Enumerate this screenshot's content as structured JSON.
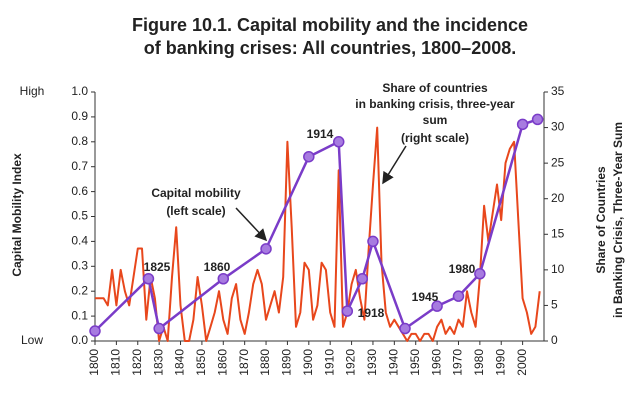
{
  "chart_data": {
    "type": "line",
    "title": [
      "Figure 10.1. Capital mobility and the incidence",
      "of banking crises: All countries, 1800–2008."
    ],
    "y_label": "Capital Mobility Index",
    "y2_label": [
      "Share of Countries",
      "in Banking Crisis, Three-Year Sum"
    ],
    "y_end_labels": [
      "Low",
      "High"
    ],
    "xlim": [
      1800,
      2010
    ],
    "xticks": [
      1800,
      1810,
      1820,
      1830,
      1840,
      1850,
      1860,
      1870,
      1880,
      1890,
      1900,
      1910,
      1920,
      1930,
      1940,
      1950,
      1960,
      1970,
      1980,
      1990,
      2000
    ],
    "ylim": [
      0,
      1
    ],
    "yticks": [
      {
        "value": 0,
        "label": "0.0"
      },
      0.1,
      0.2,
      0.3,
      0.4,
      0.5,
      0.6,
      0.7,
      0.8,
      0.9,
      {
        "value": 1,
        "label": "1.0"
      }
    ],
    "y2lim": [
      0,
      35
    ],
    "y2ticks": [
      0,
      5,
      10,
      15,
      20,
      25,
      30,
      35
    ],
    "series": [
      {
        "color": "#7a3cc8",
        "axis": "y",
        "markers": true,
        "x": [
          1800,
          1825,
          1830,
          1860,
          1880,
          1900,
          1914,
          1918,
          1925,
          1930,
          1945,
          1960,
          1970,
          1980,
          2000,
          2007
        ],
        "values": [
          0.04,
          0.25,
          0.05,
          0.25,
          0.37,
          0.74,
          0.8,
          0.12,
          0.25,
          0.4,
          0.05,
          0.14,
          0.18,
          0.27,
          0.87,
          0.89
        ]
      },
      {
        "color": "#e8471c",
        "axis": "y2",
        "markers": false,
        "x": [
          1800,
          1802,
          1804,
          1806,
          1808,
          1810,
          1812,
          1814,
          1816,
          1818,
          1820,
          1822,
          1824,
          1826,
          1828,
          1830,
          1832,
          1834,
          1836,
          1838,
          1840,
          1842,
          1844,
          1846,
          1848,
          1850,
          1852,
          1854,
          1856,
          1858,
          1860,
          1862,
          1864,
          1866,
          1868,
          1870,
          1872,
          1874,
          1876,
          1878,
          1880,
          1882,
          1884,
          1886,
          1888,
          1890,
          1892,
          1894,
          1896,
          1898,
          1900,
          1902,
          1904,
          1906,
          1908,
          1910,
          1912,
          1914,
          1916,
          1918,
          1920,
          1922,
          1924,
          1926,
          1928,
          1930,
          1932,
          1934,
          1936,
          1938,
          1940,
          1942,
          1944,
          1946,
          1948,
          1950,
          1952,
          1954,
          1956,
          1958,
          1960,
          1962,
          1964,
          1966,
          1968,
          1970,
          1972,
          1974,
          1976,
          1978,
          1980,
          1982,
          1984,
          1986,
          1988,
          1990,
          1992,
          1994,
          1996,
          1998,
          2000,
          2002,
          2004,
          2006,
          2008
        ],
        "values": [
          6,
          6,
          6,
          5,
          10,
          5,
          10,
          7,
          5,
          9,
          13,
          13,
          3,
          9,
          6,
          0,
          2,
          0,
          9,
          16,
          5,
          0,
          0,
          3,
          9,
          5,
          0,
          2,
          4,
          7,
          3,
          1,
          6,
          8,
          3,
          1,
          4,
          8,
          10,
          8,
          3,
          5,
          7,
          4,
          9,
          28,
          16,
          2,
          4,
          11,
          10,
          3,
          5,
          11,
          10,
          4,
          2,
          24,
          2,
          4,
          8,
          10,
          6,
          3,
          13,
          22,
          30,
          11,
          4,
          2,
          3,
          2,
          1,
          0,
          1,
          1,
          0,
          1,
          1,
          0,
          2,
          3,
          1,
          2,
          1,
          3,
          2,
          7,
          4,
          2,
          9,
          19,
          14,
          18,
          22,
          17,
          25,
          27,
          28,
          17,
          6,
          4,
          1,
          2,
          7
        ]
      }
    ],
    "annotations": [
      "1825",
      "1860",
      "1914",
      "1918",
      "1945",
      "1980",
      "Capital mobility",
      "(left scale)",
      "Share of countries",
      "in banking crisis, three-year",
      "sum",
      "(right scale)"
    ]
  }
}
